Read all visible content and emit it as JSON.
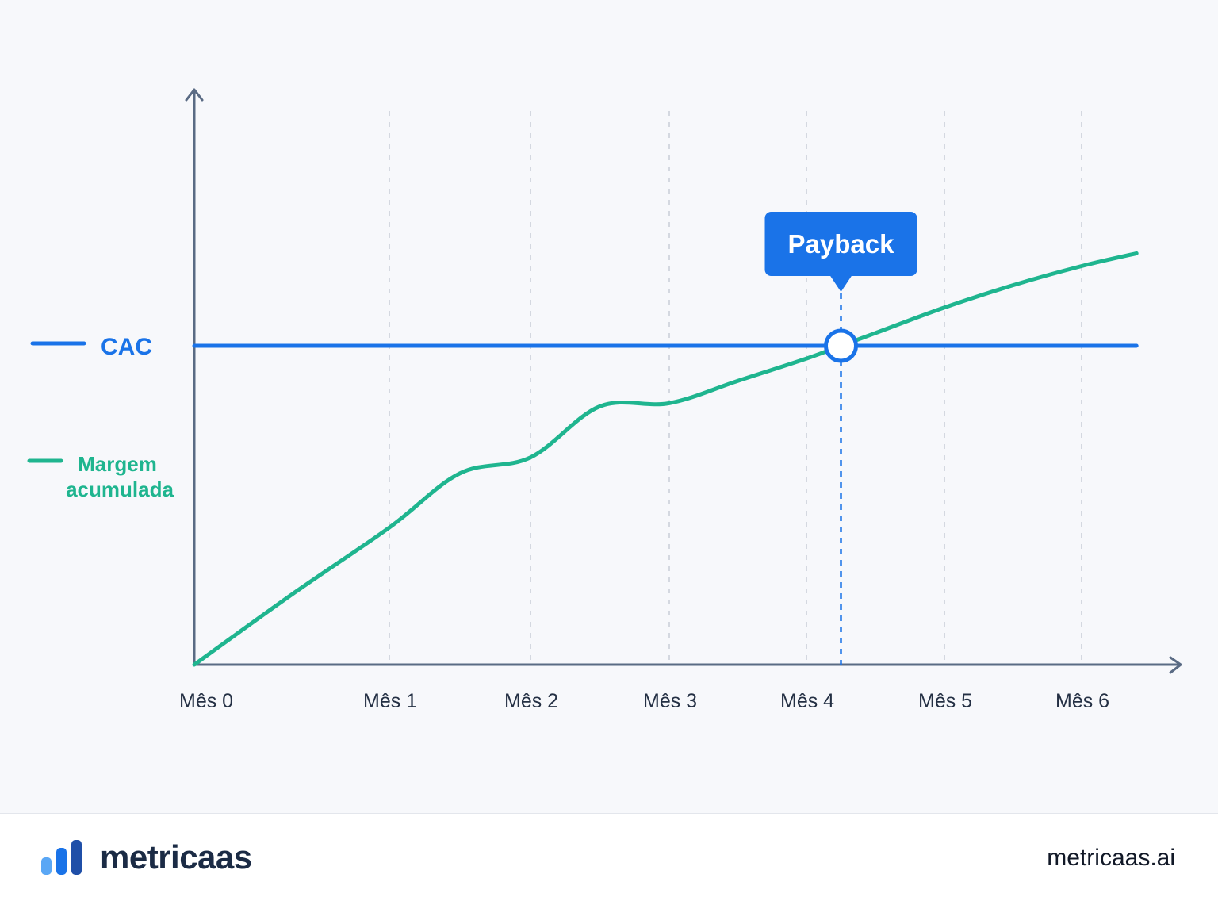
{
  "chart_data": {
    "type": "line",
    "x": [
      0,
      1,
      2,
      3,
      4,
      5,
      6
    ],
    "categories": [
      "Mês 0",
      "Mês 1",
      "Mês 2",
      "Mês 3",
      "Mês 4",
      "Mês 5",
      "Mês 6"
    ],
    "series": [
      {
        "name": "CAC",
        "color": "#1a73e8",
        "x": [
          0,
          6.4
        ],
        "values": [
          100,
          100
        ]
      },
      {
        "name": "Margem acumulada",
        "color": "#1fb58f",
        "x": [
          0,
          0.5,
          1,
          1.5,
          2,
          2.5,
          3,
          3.5,
          4,
          4.25,
          4.5,
          5,
          5.5,
          6,
          6.4
        ],
        "values": [
          0,
          22,
          43,
          60,
          65,
          81,
          82,
          89,
          96,
          100,
          104,
          112,
          119,
          125,
          129
        ]
      }
    ],
    "annotation": {
      "label": "Payback",
      "x": 4.25,
      "y": 100
    },
    "xlim": [
      0,
      6.4
    ],
    "ylim": [
      0,
      160
    ],
    "grid": "vertical-dashed",
    "legend": "left"
  },
  "footer": {
    "brand_name": "metricaas",
    "url": "metricaas.ai",
    "logo_icon": "bar-chart-logo-icon",
    "logo_colors": [
      "#5aa7f5",
      "#1a73e8",
      "#1f4fa8"
    ]
  }
}
